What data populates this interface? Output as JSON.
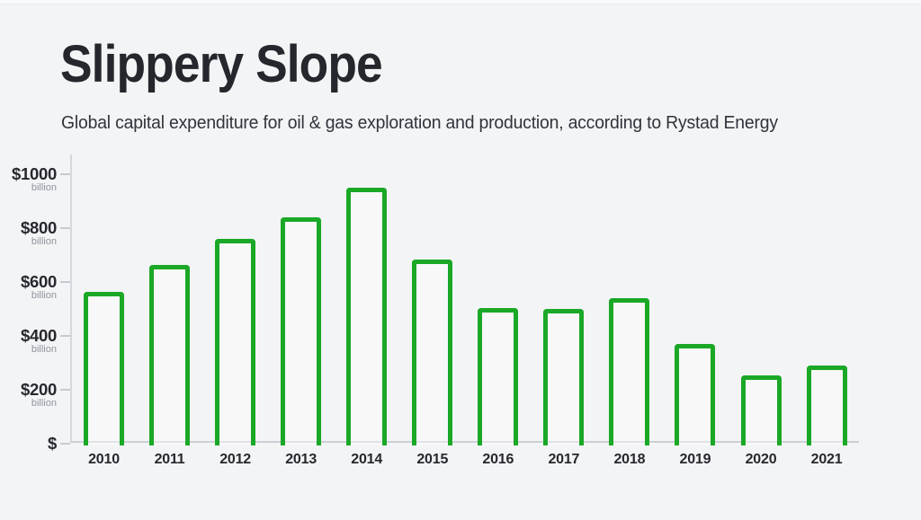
{
  "header": {
    "title": "Slippery Slope",
    "subtitle": "Global capital expenditure for oil & gas exploration and production, according to Rystad Energy"
  },
  "chart_data": {
    "type": "bar",
    "title": "Slippery Slope",
    "subtitle": "Global capital expenditure for oil & gas exploration and production, according to Rystad Energy",
    "units": "USD billion",
    "categories": [
      "2010",
      "2011",
      "2012",
      "2013",
      "2014",
      "2015",
      "2016",
      "2017",
      "2018",
      "2019",
      "2020",
      "2021"
    ],
    "values": [
      565,
      665,
      760,
      840,
      950,
      685,
      505,
      500,
      540,
      370,
      255,
      290
    ],
    "ylim": [
      0,
      1070
    ],
    "grid": false,
    "legend": false,
    "bar_style": "hollow-outline",
    "y_ticks": [
      {
        "value": 1000,
        "label": "$1000",
        "sublabel": "billion"
      },
      {
        "value": 800,
        "label": "$800",
        "sublabel": "billion"
      },
      {
        "value": 600,
        "label": "$600",
        "sublabel": "billion"
      },
      {
        "value": 400,
        "label": "$400",
        "sublabel": "billion"
      },
      {
        "value": 200,
        "label": "$200",
        "sublabel": "billion"
      },
      {
        "value": 0,
        "label": "$",
        "sublabel": ""
      }
    ],
    "colors": {
      "bar_outline": "#1aa826",
      "text_dark": "#27272e",
      "text_muted": "#8e949c",
      "axis": "#cfd3d9",
      "background": "#f3f4f6"
    }
  }
}
